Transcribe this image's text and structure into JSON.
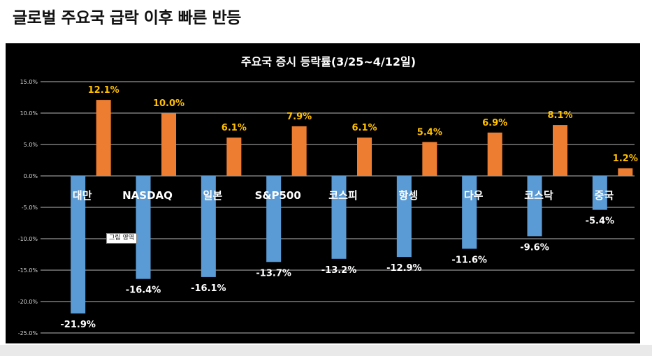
{
  "page": {
    "title": "글로벌 주요국 급락 이후 빠른 반등"
  },
  "tooltip": {
    "text": "그림 영역"
  },
  "colors": {
    "positive": "#ed7d31",
    "negative": "#5b9bd5",
    "background": "#000000",
    "grid": "#d9d9d9",
    "pos_label": "#ffc000",
    "neg_label": "#ffffff"
  },
  "chart_data": {
    "type": "bar",
    "title": "주요국 증시 등락률(3/25~4/12일)",
    "categories": [
      "대만",
      "NASDAQ",
      "일본",
      "S&P500",
      "코스피",
      "항셍",
      "다우",
      "코스닥",
      "중국"
    ],
    "series": [
      {
        "values": [
          12.1,
          10.0,
          6.1,
          7.9,
          6.1,
          5.4,
          6.9,
          8.1,
          1.2
        ],
        "labels": [
          "12.1%",
          "10.0%",
          "6.1%",
          "7.9%",
          "6.1%",
          "5.4%",
          "6.9%",
          "8.1%",
          "1.2%"
        ]
      },
      {
        "values": [
          -21.9,
          -16.4,
          -16.1,
          -13.7,
          -13.2,
          -12.9,
          -11.6,
          -9.6,
          -5.4
        ],
        "labels": [
          "-21.9%",
          "-16.4%",
          "-16.1%",
          "-13.7%",
          "-13.2%",
          "-12.9%",
          "-11.6%",
          "-9.6%",
          "-5.4%"
        ]
      }
    ],
    "ylim": [
      -25,
      15
    ],
    "yticks": [
      "15.0%",
      "10.0%",
      "5.0%",
      "0.0%",
      "-5.0%",
      "-10.0%",
      "-15.0%",
      "-20.0%",
      "-25.0%"
    ],
    "ytick_values": [
      15,
      10,
      5,
      0,
      -5,
      -10,
      -15,
      -20,
      -25
    ],
    "grid": true
  }
}
